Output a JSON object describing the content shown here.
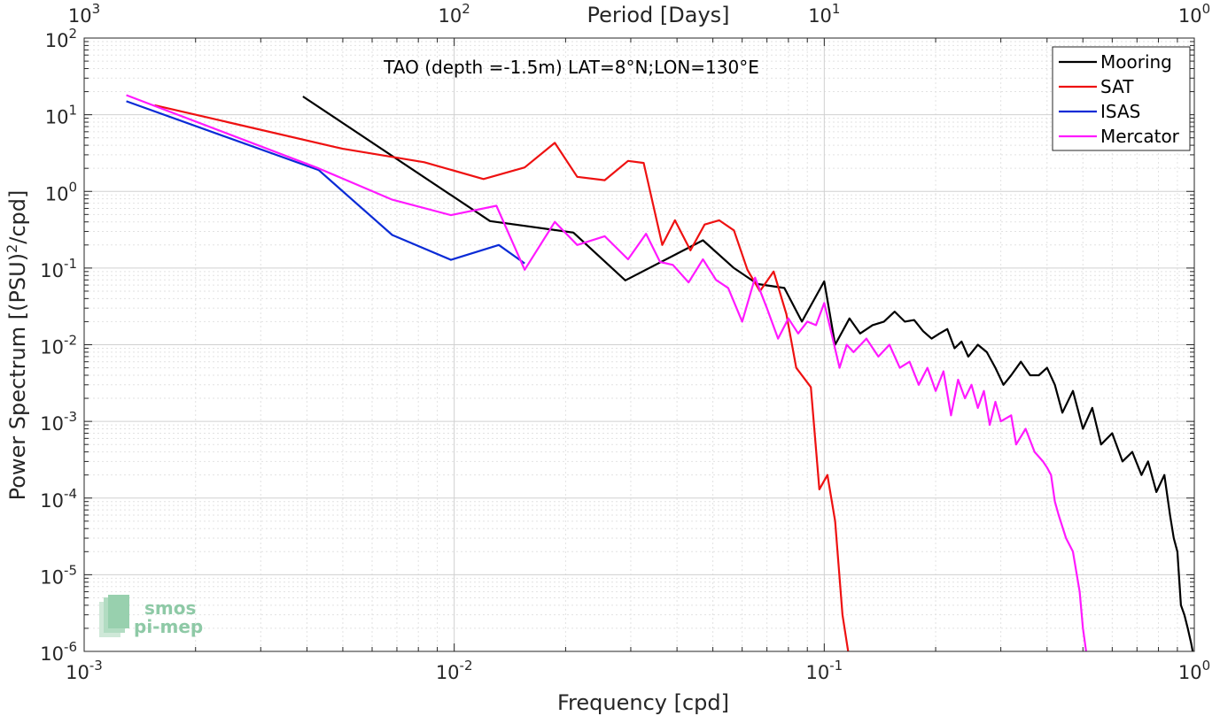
{
  "chart_data": {
    "type": "line",
    "title": "TAO (depth =-1.5m) LAT=8°N;LON=130°E",
    "xlabel": "Frequency [cpd]",
    "ylabel": "Power Spectrum [(PSU)",
    "ylabel_sup": "2",
    "ylabel_end": "/cpd]",
    "x2label": "Period [Days]",
    "x_scale": "log",
    "y_scale": "log",
    "xlim": [
      0.001,
      1
    ],
    "ylim": [
      1e-06,
      100
    ],
    "grid": true,
    "legend_position": "top-right",
    "x_ticks": [
      {
        "value": 0.001,
        "base": "10",
        "exp": "-3"
      },
      {
        "value": 0.01,
        "base": "10",
        "exp": "-2"
      },
      {
        "value": 0.1,
        "base": "10",
        "exp": "-1"
      },
      {
        "value": 1,
        "base": "10",
        "exp": "0"
      }
    ],
    "y_ticks": [
      {
        "value": 1e-06,
        "base": "10",
        "exp": "-6"
      },
      {
        "value": 1e-05,
        "base": "10",
        "exp": "-5"
      },
      {
        "value": 0.0001,
        "base": "10",
        "exp": "-4"
      },
      {
        "value": 0.001,
        "base": "10",
        "exp": "-3"
      },
      {
        "value": 0.01,
        "base": "10",
        "exp": "-2"
      },
      {
        "value": 0.1,
        "base": "10",
        "exp": "-1"
      },
      {
        "value": 1,
        "base": "10",
        "exp": "0"
      },
      {
        "value": 10,
        "base": "10",
        "exp": "1"
      },
      {
        "value": 100,
        "base": "10",
        "exp": "2"
      }
    ],
    "x2_ticks": [
      {
        "value": 0.001,
        "base": "10",
        "exp": "3"
      },
      {
        "value": 0.01,
        "base": "10",
        "exp": "2"
      },
      {
        "value": 0.1,
        "base": "10",
        "exp": "1"
      },
      {
        "value": 1,
        "base": "10",
        "exp": "0"
      }
    ],
    "series": [
      {
        "name": "Mooring",
        "color": "#000000",
        "points": [
          [
            0.0039,
            17.3
          ],
          [
            0.0125,
            0.41
          ],
          [
            0.021,
            0.29
          ],
          [
            0.029,
            0.069
          ],
          [
            0.047,
            0.23
          ],
          [
            0.057,
            0.1
          ],
          [
            0.066,
            0.062
          ],
          [
            0.078,
            0.055
          ],
          [
            0.087,
            0.02
          ],
          [
            0.1,
            0.067
          ],
          [
            0.107,
            0.01
          ],
          [
            0.117,
            0.022
          ],
          [
            0.125,
            0.014
          ],
          [
            0.135,
            0.018
          ],
          [
            0.145,
            0.02
          ],
          [
            0.155,
            0.027
          ],
          [
            0.165,
            0.02
          ],
          [
            0.175,
            0.021
          ],
          [
            0.185,
            0.015
          ],
          [
            0.195,
            0.012
          ],
          [
            0.205,
            0.014
          ],
          [
            0.215,
            0.016
          ],
          [
            0.225,
            0.009
          ],
          [
            0.235,
            0.011
          ],
          [
            0.245,
            0.007
          ],
          [
            0.26,
            0.01
          ],
          [
            0.275,
            0.008
          ],
          [
            0.29,
            0.005
          ],
          [
            0.305,
            0.003
          ],
          [
            0.32,
            0.004
          ],
          [
            0.34,
            0.006
          ],
          [
            0.36,
            0.004
          ],
          [
            0.38,
            0.004
          ],
          [
            0.4,
            0.005
          ],
          [
            0.42,
            0.003
          ],
          [
            0.44,
            0.0013
          ],
          [
            0.47,
            0.0025
          ],
          [
            0.5,
            0.0008
          ],
          [
            0.53,
            0.0015
          ],
          [
            0.56,
            0.0005
          ],
          [
            0.6,
            0.0007
          ],
          [
            0.64,
            0.0003
          ],
          [
            0.68,
            0.0004
          ],
          [
            0.72,
            0.0002
          ],
          [
            0.75,
            0.0003
          ],
          [
            0.79,
            0.00012
          ],
          [
            0.83,
            0.0002
          ],
          [
            0.86,
            6e-05
          ],
          [
            0.88,
            3e-05
          ],
          [
            0.9,
            2e-05
          ],
          [
            0.92,
            4e-06
          ],
          [
            0.94,
            3e-06
          ],
          [
            0.96,
            2e-06
          ],
          [
            0.98,
            1.3e-06
          ],
          [
            0.99,
            1e-06
          ]
        ]
      },
      {
        "name": "SAT",
        "color": "#ee1111",
        "points": [
          [
            0.00155,
            13.3
          ],
          [
            0.005,
            3.6
          ],
          [
            0.0083,
            2.4
          ],
          [
            0.012,
            1.45
          ],
          [
            0.0155,
            2.05
          ],
          [
            0.0187,
            4.3
          ],
          [
            0.0215,
            1.55
          ],
          [
            0.0255,
            1.4
          ],
          [
            0.0295,
            2.5
          ],
          [
            0.0325,
            2.35
          ],
          [
            0.0365,
            0.2
          ],
          [
            0.0395,
            0.42
          ],
          [
            0.0435,
            0.17
          ],
          [
            0.0475,
            0.37
          ],
          [
            0.052,
            0.42
          ],
          [
            0.057,
            0.31
          ],
          [
            0.062,
            0.095
          ],
          [
            0.067,
            0.05
          ],
          [
            0.073,
            0.09
          ],
          [
            0.079,
            0.025
          ],
          [
            0.084,
            0.005
          ],
          [
            0.092,
            0.0028
          ],
          [
            0.097,
            0.00013
          ],
          [
            0.102,
            0.0002
          ],
          [
            0.107,
            5e-05
          ],
          [
            0.112,
            3e-06
          ],
          [
            0.116,
            1e-06
          ]
        ]
      },
      {
        "name": "ISAS",
        "color": "#0a2bd6",
        "points": [
          [
            0.0013,
            15
          ],
          [
            0.0043,
            1.9
          ],
          [
            0.0068,
            0.27
          ],
          [
            0.0098,
            0.128
          ],
          [
            0.0132,
            0.2
          ],
          [
            0.0155,
            0.115
          ]
        ]
      },
      {
        "name": "Mercator",
        "color": "#ff1aff",
        "points": [
          [
            0.0013,
            18
          ],
          [
            0.0043,
            2
          ],
          [
            0.0068,
            0.78
          ],
          [
            0.0098,
            0.49
          ],
          [
            0.013,
            0.65
          ],
          [
            0.0155,
            0.095
          ],
          [
            0.0187,
            0.4
          ],
          [
            0.0215,
            0.2
          ],
          [
            0.0255,
            0.26
          ],
          [
            0.0295,
            0.13
          ],
          [
            0.033,
            0.28
          ],
          [
            0.036,
            0.12
          ],
          [
            0.039,
            0.11
          ],
          [
            0.043,
            0.065
          ],
          [
            0.047,
            0.13
          ],
          [
            0.051,
            0.07
          ],
          [
            0.055,
            0.055
          ],
          [
            0.06,
            0.02
          ],
          [
            0.065,
            0.075
          ],
          [
            0.07,
            0.03
          ],
          [
            0.075,
            0.012
          ],
          [
            0.08,
            0.022
          ],
          [
            0.085,
            0.014
          ],
          [
            0.09,
            0.02
          ],
          [
            0.095,
            0.018
          ],
          [
            0.1,
            0.035
          ],
          [
            0.105,
            0.013
          ],
          [
            0.11,
            0.005
          ],
          [
            0.115,
            0.01
          ],
          [
            0.12,
            0.008
          ],
          [
            0.13,
            0.012
          ],
          [
            0.14,
            0.007
          ],
          [
            0.15,
            0.01
          ],
          [
            0.16,
            0.005
          ],
          [
            0.17,
            0.006
          ],
          [
            0.18,
            0.003
          ],
          [
            0.19,
            0.005
          ],
          [
            0.2,
            0.0025
          ],
          [
            0.21,
            0.0045
          ],
          [
            0.22,
            0.0012
          ],
          [
            0.23,
            0.0035
          ],
          [
            0.24,
            0.002
          ],
          [
            0.25,
            0.003
          ],
          [
            0.26,
            0.0015
          ],
          [
            0.27,
            0.0025
          ],
          [
            0.28,
            0.0009
          ],
          [
            0.29,
            0.0018
          ],
          [
            0.3,
            0.001
          ],
          [
            0.32,
            0.0012
          ],
          [
            0.33,
            0.0005
          ],
          [
            0.35,
            0.0008
          ],
          [
            0.37,
            0.0004
          ],
          [
            0.39,
            0.0003
          ],
          [
            0.4,
            0.00025
          ],
          [
            0.41,
            0.0002
          ],
          [
            0.42,
            9e-05
          ],
          [
            0.43,
            6e-05
          ],
          [
            0.45,
            3e-05
          ],
          [
            0.47,
            2e-05
          ],
          [
            0.49,
            6e-06
          ],
          [
            0.5,
            2e-06
          ],
          [
            0.51,
            1e-06
          ]
        ]
      }
    ]
  },
  "logo": {
    "line1": "smos",
    "line2": "pi-mep"
  }
}
